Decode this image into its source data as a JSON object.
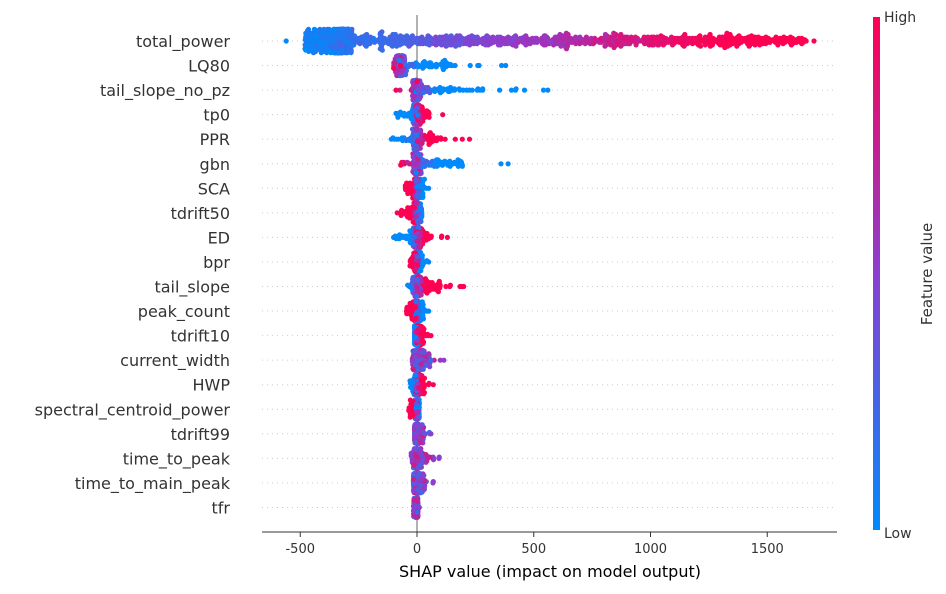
{
  "chart_data": {
    "type": "scatter",
    "subtype": "shap-beeswarm",
    "xlabel": "SHAP value (impact on model output)",
    "xlim": [
      -665,
      1800
    ],
    "xticks": [
      -500,
      0,
      500,
      1000,
      1500
    ],
    "grid": "dotted horizontal per feature",
    "colorbar": {
      "title": "Feature value",
      "high_label": "High",
      "low_label": "Low",
      "low_color": "#008afb",
      "high_color": "#ff0052"
    },
    "features": [
      {
        "name": "total_power",
        "min": -560,
        "max": 1700,
        "mode": -330,
        "high_effect": "positive"
      },
      {
        "name": "LQ80",
        "min": -100,
        "max": 380,
        "mode": -75,
        "high_effect": "negative"
      },
      {
        "name": "tail_slope_no_pz",
        "min": -90,
        "max": 560,
        "mode": 0,
        "high_effect": "negative"
      },
      {
        "name": "tp0",
        "min": -90,
        "max": 110,
        "mode": 0,
        "high_effect": "positive"
      },
      {
        "name": "PPR",
        "min": -110,
        "max": 225,
        "mode": 0,
        "high_effect": "positive"
      },
      {
        "name": "gbn",
        "min": -70,
        "max": 390,
        "mode": 0,
        "high_effect": "negative"
      },
      {
        "name": "SCA",
        "min": -50,
        "max": 50,
        "mode": 0,
        "high_effect": "negative"
      },
      {
        "name": "tdrift50",
        "min": -85,
        "max": 20,
        "mode": 0,
        "high_effect": "negative"
      },
      {
        "name": "ED",
        "min": -100,
        "max": 130,
        "mode": 0,
        "high_effect": "positive"
      },
      {
        "name": "bpr",
        "min": -30,
        "max": 50,
        "mode": 0,
        "high_effect": "negative"
      },
      {
        "name": "tail_slope",
        "min": -40,
        "max": 200,
        "mode": 0,
        "high_effect": "positive"
      },
      {
        "name": "peak_count",
        "min": -45,
        "max": 50,
        "mode": 0,
        "high_effect": "negative"
      },
      {
        "name": "tdrift10",
        "min": -10,
        "max": 60,
        "mode": 0,
        "high_effect": "positive"
      },
      {
        "name": "current_width",
        "min": -20,
        "max": 115,
        "mode": 0,
        "high_effect": "mixed"
      },
      {
        "name": "HWP",
        "min": -30,
        "max": 70,
        "mode": 0,
        "high_effect": "positive"
      },
      {
        "name": "spectral_centroid_power",
        "min": -35,
        "max": 10,
        "mode": 0,
        "high_effect": "negative"
      },
      {
        "name": "tdrift99",
        "min": -10,
        "max": 60,
        "mode": 0,
        "high_effect": "mixed"
      },
      {
        "name": "time_to_peak",
        "min": -25,
        "max": 95,
        "mode": 0,
        "high_effect": "mixed"
      },
      {
        "name": "time_to_main_peak",
        "min": -15,
        "max": 70,
        "mode": 0,
        "high_effect": "mixed"
      },
      {
        "name": "tfr",
        "min": -15,
        "max": 10,
        "mode": 0,
        "high_effect": "mixed"
      }
    ]
  }
}
